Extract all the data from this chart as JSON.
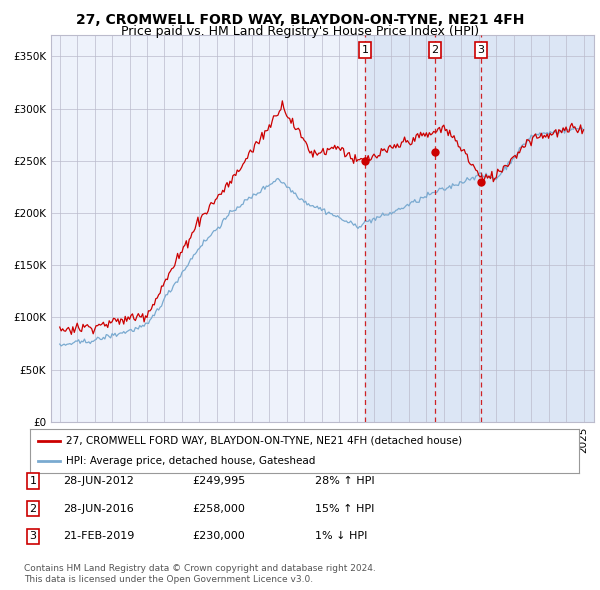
{
  "title": "27, CROMWELL FORD WAY, BLAYDON-ON-TYNE, NE21 4FH",
  "subtitle": "Price paid vs. HM Land Registry's House Price Index (HPI)",
  "legend_red": "27, CROMWELL FORD WAY, BLAYDON-ON-TYNE, NE21 4FH (detached house)",
  "legend_blue": "HPI: Average price, detached house, Gateshead",
  "footer1": "Contains HM Land Registry data © Crown copyright and database right 2024.",
  "footer2": "This data is licensed under the Open Government Licence v3.0.",
  "transactions": [
    {
      "num": 1,
      "date": "28-JUN-2012",
      "price": 249995,
      "pct": "28%",
      "dir": "↑"
    },
    {
      "num": 2,
      "date": "28-JUN-2016",
      "price": 258000,
      "pct": "15%",
      "dir": "↑"
    },
    {
      "num": 3,
      "date": "21-FEB-2019",
      "price": 230000,
      "pct": "1%",
      "dir": "↓"
    }
  ],
  "transaction_dates_dec": [
    2012.49,
    2016.49,
    2019.13
  ],
  "ylim": [
    0,
    370000
  ],
  "yticks": [
    0,
    50000,
    100000,
    150000,
    200000,
    250000,
    300000,
    350000
  ],
  "ytick_labels": [
    "£0",
    "£50K",
    "£100K",
    "£150K",
    "£200K",
    "£250K",
    "£300K",
    "£350K"
  ],
  "background_color": "#ffffff",
  "plot_bg_color": "#eef2fb",
  "shaded_region_color": "#dce6f5",
  "grid_color": "#bbbbcc",
  "red_line_color": "#cc0000",
  "blue_line_color": "#7aaad0",
  "dashed_line_color": "#cc0000",
  "marker_color": "#cc0000",
  "title_fontsize": 10,
  "subtitle_fontsize": 9,
  "tick_fontsize": 7.5,
  "legend_fontsize": 7.5,
  "table_fontsize": 8,
  "footer_fontsize": 6.5
}
